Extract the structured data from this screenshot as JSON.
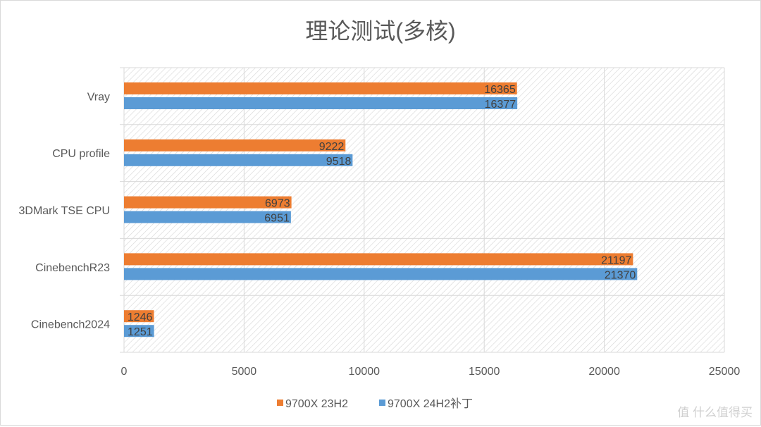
{
  "chart_data": {
    "type": "bar",
    "orientation": "horizontal",
    "title": "理论测试(多核)",
    "categories": [
      "Vray",
      "CPU profile",
      "3DMark TSE CPU",
      "CinebenchR23",
      "Cinebench2024"
    ],
    "series": [
      {
        "name": "9700X 23H2",
        "color": "#ED7D31",
        "values": [
          16365,
          9222,
          6973,
          21197,
          1246
        ]
      },
      {
        "name": "9700X 24H2补丁",
        "color": "#5B9BD5",
        "values": [
          16377,
          9518,
          6951,
          21370,
          1251
        ]
      }
    ],
    "xlim": [
      0,
      25000
    ],
    "xticks": [
      0,
      5000,
      10000,
      15000,
      20000,
      25000
    ],
    "grid": true,
    "data_labels": true,
    "legend": "bottom",
    "xlabel": "",
    "ylabel": ""
  },
  "watermark": "值 什么值得买"
}
